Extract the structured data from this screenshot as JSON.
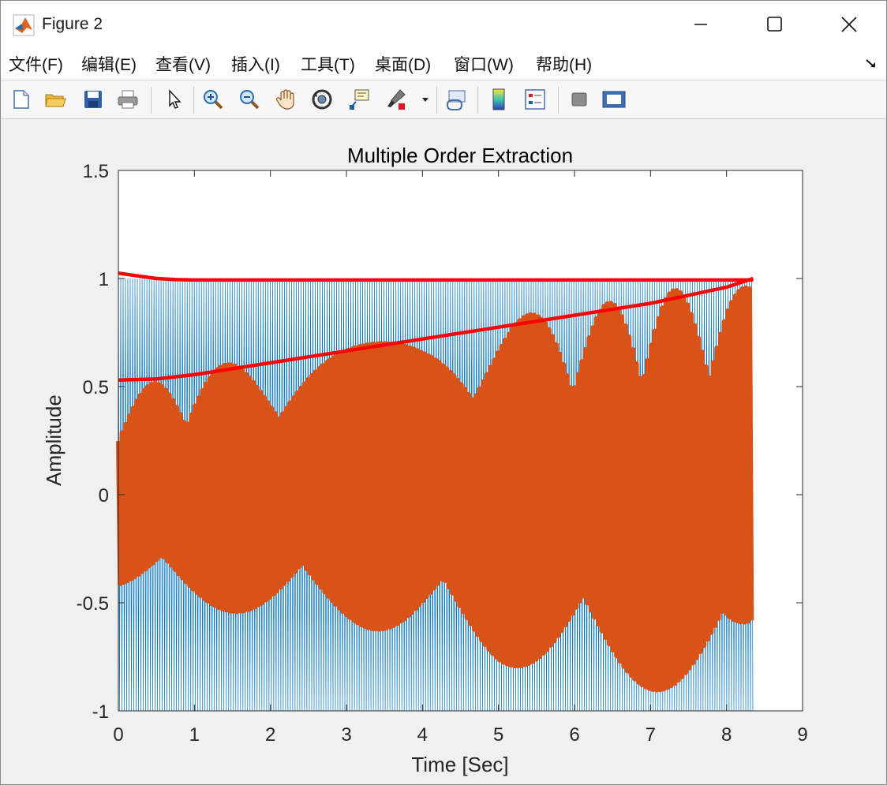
{
  "window": {
    "title": "Figure 2"
  },
  "menu": [
    "文件(F)",
    "编辑(E)",
    "查看(V)",
    "插入(I)",
    "工具(T)",
    "桌面(D)",
    "窗口(W)",
    "帮助(H)"
  ],
  "toolbar": [
    "new-figure",
    "open-file",
    "save",
    "print",
    "edit-plot",
    "zoom-in",
    "zoom-out",
    "pan",
    "rotate-3d",
    "data-cursor",
    "brush",
    "link-plot",
    "insert-colorbar",
    "insert-legend",
    "hide-plot-tools",
    "show-plot-tools"
  ],
  "colors": {
    "blue_series": "#0072BD",
    "orange_series": "#D95319",
    "envelope": "#FF0000",
    "axes": "#262626"
  },
  "chart_data": {
    "type": "line",
    "title": "Multiple Order Extraction",
    "xlabel": "Time [Sec]",
    "ylabel": "Amplitude",
    "xlim": [
      0,
      9
    ],
    "ylim": [
      -1,
      1.5
    ],
    "xticks": [
      "0",
      "1",
      "2",
      "3",
      "4",
      "5",
      "6",
      "7",
      "8",
      "9"
    ],
    "yticks": [
      "-1",
      "-0.5",
      "0",
      "0.5",
      "1",
      "1.5"
    ],
    "grid": false,
    "legend": "none",
    "series": [
      {
        "style": "dense oscillation, blue",
        "x": [
          0,
          1,
          2,
          3,
          4,
          5,
          6,
          7,
          8,
          8.35
        ],
        "upper": [
          1.0,
          1.0,
          1.0,
          1.0,
          1.0,
          1.0,
          1.0,
          1.0,
          1.0,
          1.0
        ],
        "lower": [
          -1.0,
          -1.0,
          -1.0,
          -1.0,
          -1.0,
          -1.0,
          -1.0,
          -1.0,
          -1.0,
          -1.0
        ]
      },
      {
        "style": "thick oscillation, orange",
        "x": [
          0,
          0.5,
          1,
          2,
          3,
          4,
          5,
          6,
          7,
          8,
          8.35
        ],
        "upper": [
          0.45,
          0.52,
          0.58,
          0.63,
          0.68,
          0.73,
          0.82,
          0.85,
          0.93,
          0.98,
          0.95
        ],
        "lower": [
          -0.45,
          -0.5,
          -0.52,
          -0.56,
          -0.6,
          -0.66,
          -0.78,
          -0.84,
          -0.9,
          -0.96,
          -0.7
        ]
      },
      {
        "style": "envelope, red",
        "x": [
          0,
          0.25,
          0.5,
          0.75,
          1,
          2,
          3,
          4,
          5,
          6,
          7,
          8,
          8.35
        ],
        "y": [
          1.025,
          1.012,
          1.0,
          0.995,
          0.993,
          0.993,
          0.993,
          0.993,
          0.993,
          0.993,
          0.993,
          0.993,
          0.993
        ]
      },
      {
        "style": "envelope, red",
        "x": [
          0,
          0.5,
          1,
          2,
          3,
          4,
          5,
          6,
          7,
          8,
          8.35
        ],
        "y": [
          0.53,
          0.535,
          0.555,
          0.61,
          0.665,
          0.72,
          0.775,
          0.83,
          0.885,
          0.96,
          1.0
        ]
      }
    ]
  }
}
